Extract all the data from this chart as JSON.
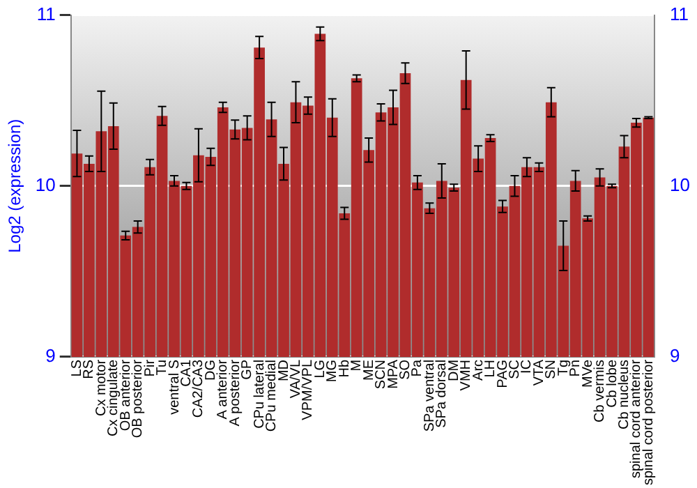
{
  "chart_data": {
    "type": "bar",
    "ylabel": "Log2 (expression)",
    "categories": [
      "LS",
      "RS",
      "Cx motor",
      "Cx cingulate",
      "OB anterior",
      "OB posterior",
      "Pir",
      "Tu",
      "ventral S",
      "CA1",
      "CA2/CA3",
      "DG",
      "A anterior",
      "A posterior",
      "GP",
      "CPu lateral",
      "CPu medial",
      "MD",
      "VA/VL",
      "VPM/VPL",
      "LG",
      "MG",
      "Hb",
      "M",
      "ME",
      "SCN",
      "MPA",
      "SO",
      "Pa",
      "SPa ventral",
      "SPa dorsal",
      "DM",
      "VMH",
      "Arc",
      "LH",
      "PAG",
      "SC",
      "IC",
      "VTA",
      "SN",
      "Tg",
      "Pn",
      "MVe",
      "Cb vermis",
      "Cb lobe",
      "Cb nucleus",
      "spinal cord anterior",
      "spinal cord posterior"
    ],
    "values": [
      10.19,
      10.13,
      10.32,
      10.35,
      9.71,
      9.76,
      10.11,
      10.41,
      10.03,
      10.0,
      10.18,
      10.17,
      10.46,
      10.33,
      10.34,
      10.81,
      10.39,
      10.13,
      10.49,
      10.47,
      10.89,
      10.4,
      9.84,
      10.63,
      10.21,
      10.43,
      10.46,
      10.66,
      10.02,
      9.87,
      10.03,
      9.99,
      10.62,
      10.16,
      10.28,
      9.88,
      10.0,
      10.11,
      10.11,
      10.49,
      9.65,
      10.03,
      9.81,
      10.05,
      10.0,
      10.23,
      10.37,
      10.4
    ],
    "errors": [
      0.135,
      0.045,
      0.235,
      0.135,
      0.025,
      0.035,
      0.045,
      0.055,
      0.03,
      0.02,
      0.155,
      0.05,
      0.03,
      0.055,
      0.07,
      0.065,
      0.1,
      0.095,
      0.12,
      0.05,
      0.04,
      0.11,
      0.035,
      0.02,
      0.07,
      0.05,
      0.1,
      0.06,
      0.04,
      0.03,
      0.1,
      0.02,
      0.17,
      0.075,
      0.02,
      0.035,
      0.06,
      0.055,
      0.025,
      0.085,
      0.145,
      0.06,
      0.015,
      0.05,
      0.01,
      0.065,
      0.025,
      0.005
    ],
    "color": "#b02c2c",
    "ylim": [
      9,
      11
    ],
    "yticks": [
      9,
      10,
      11
    ],
    "y2lim": [
      9,
      11
    ],
    "y2ticks": [
      9,
      10,
      11
    ],
    "grid": "y",
    "legend": false
  }
}
